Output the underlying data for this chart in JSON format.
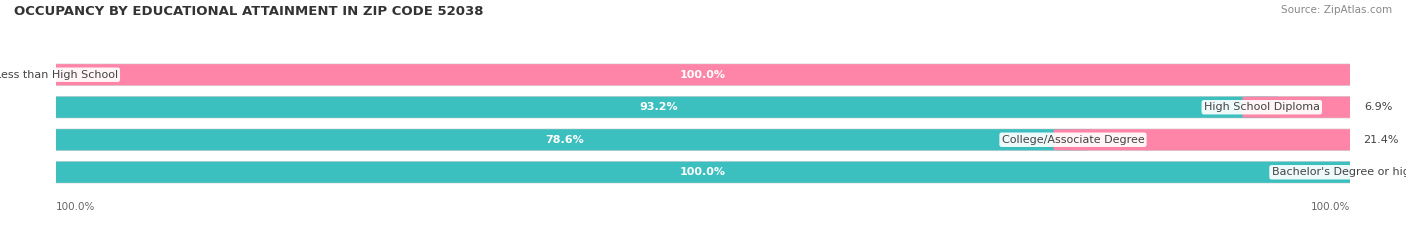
{
  "title": "OCCUPANCY BY EDUCATIONAL ATTAINMENT IN ZIP CODE 52038",
  "source": "Source: ZipAtlas.com",
  "categories": [
    "Less than High School",
    "High School Diploma",
    "College/Associate Degree",
    "Bachelor's Degree or higher"
  ],
  "owner_values": [
    0.0,
    93.2,
    78.6,
    100.0
  ],
  "renter_values": [
    100.0,
    6.9,
    21.4,
    0.0
  ],
  "owner_color": "#3BBFBF",
  "renter_color": "#FF85A8",
  "bar_bg_color": "#EAEAEA",
  "bar_border_color": "#D0D0D0",
  "title_fontsize": 9.5,
  "source_fontsize": 7.5,
  "legend_fontsize": 8.5,
  "category_fontsize": 8,
  "value_fontsize": 8,
  "background_color": "#FFFFFF",
  "text_dark": "#444444",
  "text_light": "#FFFFFF",
  "bottom_labels": [
    "100.0%",
    "100.0%"
  ]
}
